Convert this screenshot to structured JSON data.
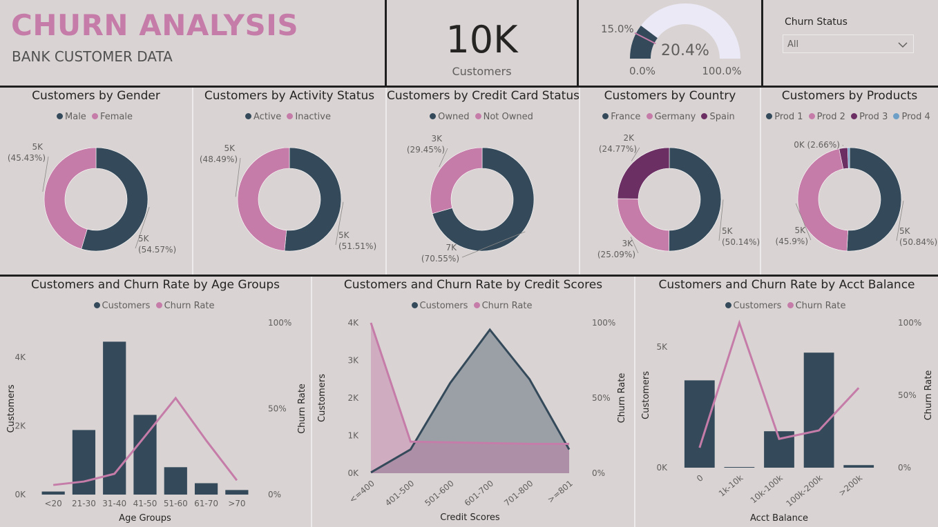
{
  "header": {
    "title": "CHURN ANALYSIS",
    "subtitle": "BANK CUSTOMER DATA",
    "kpi_value": "10K",
    "kpi_label": "Customers"
  },
  "gauge": {
    "value_label": "20.4%",
    "value": 20.4,
    "target_label": "15.0%",
    "target": 15.0,
    "min_label": "0.0%",
    "max_label": "100.0%"
  },
  "filter": {
    "label": "Churn Status",
    "selected": "All"
  },
  "colors": {
    "navy": "#344a5a",
    "pink": "#c57ca8",
    "purple": "#6b2f63",
    "blue": "#6d9fc7",
    "title_pink": "#c57ca8"
  },
  "chart_data": [
    {
      "type": "pie",
      "title": "Customers by Gender",
      "categories": [
        "Male",
        "Female"
      ],
      "values": [
        5457,
        4543
      ],
      "labels": [
        [
          "5K",
          "(54.57%)"
        ],
        [
          "5K",
          "(45.43%)"
        ]
      ]
    },
    {
      "type": "pie",
      "title": "Customers by Activity Status",
      "categories": [
        "Active",
        "Inactive"
      ],
      "values": [
        5151,
        4849
      ],
      "labels": [
        [
          "5K",
          "(51.51%)"
        ],
        [
          "5K",
          "(48.49%)"
        ]
      ]
    },
    {
      "type": "pie",
      "title": "Customers by Credit Card Status",
      "categories": [
        "Owned",
        "Not Owned"
      ],
      "values": [
        7055,
        2945
      ],
      "labels": [
        [
          "7K",
          "(70.55%)"
        ],
        [
          "3K",
          "(29.45%)"
        ]
      ]
    },
    {
      "type": "pie",
      "title": "Customers by Country",
      "categories": [
        "France",
        "Germany",
        "Spain"
      ],
      "values": [
        5014,
        2509,
        2477
      ],
      "labels": [
        [
          "5K",
          "(50.14%)"
        ],
        [
          "3K",
          "(25.09%)"
        ],
        [
          "2K",
          "(24.77%)"
        ]
      ]
    },
    {
      "type": "pie",
      "title": "Customers by Products",
      "categories": [
        "Prod 1",
        "Prod 2",
        "Prod 3",
        "Prod 4"
      ],
      "values": [
        5084,
        4590,
        266,
        60
      ],
      "labels": [
        [
          "5K",
          "(50.84%)"
        ],
        [
          "5K",
          "(45.9%)"
        ],
        [
          "0K (2.66%)"
        ],
        []
      ]
    },
    {
      "type": "bar",
      "title": "Customers and Churn Rate by Age Groups",
      "legend": [
        "Customers",
        "Churn Rate"
      ],
      "categories": [
        "<20",
        "21-30",
        "31-40",
        "41-50",
        "51-60",
        "61-70",
        ">70"
      ],
      "series": [
        {
          "name": "Customers",
          "values": [
            89,
            1879,
            4451,
            2320,
            797,
            331,
            133
          ]
        },
        {
          "name": "Churn Rate",
          "values": [
            5.6,
            7.6,
            12.1,
            34.0,
            56.2,
            31.5,
            8.3
          ]
        }
      ],
      "xlabel": "Age Groups",
      "ylabel": "Customers",
      "y2label": "Churn Rate",
      "ylim": [
        0,
        5000
      ],
      "y2lim": [
        0,
        100
      ],
      "yticks": [
        "0K",
        "2K",
        "4K"
      ],
      "y2ticks": [
        "0%",
        "50%",
        "100%"
      ]
    },
    {
      "type": "area",
      "title": "Customers and Churn Rate by Credit Scores",
      "legend": [
        "Customers",
        "Churn Rate"
      ],
      "categories": [
        "<=400",
        "401-500",
        "501-600",
        "601-700",
        "701-800",
        ">=801"
      ],
      "series": [
        {
          "name": "Customers",
          "values": [
            19,
            633,
            2400,
            3817,
            2500,
            631
          ]
        },
        {
          "name": "Churn Rate",
          "values": [
            100,
            21,
            20.5,
            20,
            19.5,
            19.5
          ]
        }
      ],
      "xlabel": "Credit Scores",
      "ylabel": "Customers",
      "y2label": "Churn Rate",
      "ylim": [
        0,
        4000
      ],
      "y2lim": [
        0,
        100
      ],
      "yticks": [
        "0K",
        "1K",
        "2K",
        "3K",
        "4K"
      ],
      "y2ticks": [
        "0%",
        "50%",
        "100%"
      ]
    },
    {
      "type": "bar",
      "title": "Customers and Churn Rate by Acct Balance",
      "legend": [
        "Customers",
        "Churn Rate"
      ],
      "categories": [
        "0",
        "1k-10k",
        "10k-100k",
        "100k-200k",
        ">200k"
      ],
      "series": [
        {
          "name": "Customers",
          "values": [
            3617,
            2,
            1509,
            4765,
            107
          ]
        },
        {
          "name": "Churn Rate",
          "values": [
            13.8,
            100,
            19.9,
            25.7,
            55.1
          ]
        }
      ],
      "xlabel": "Acct Balance",
      "ylabel": "Customers",
      "y2label": "Churn Rate",
      "ylim": [
        0,
        6000
      ],
      "y2lim": [
        0,
        100
      ],
      "yticks": [
        "0K",
        "5K"
      ],
      "y2ticks": [
        "0%",
        "50%",
        "100%"
      ]
    }
  ]
}
